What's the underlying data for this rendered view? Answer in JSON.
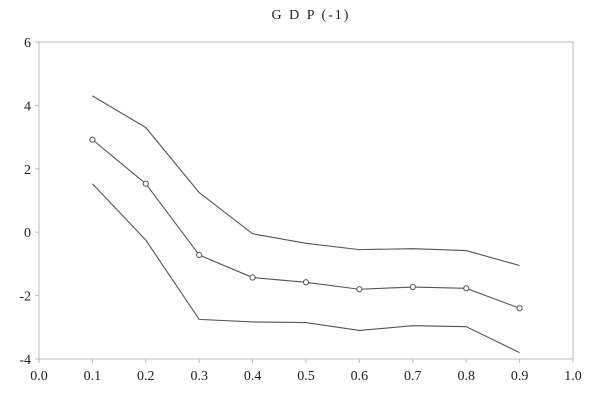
{
  "chart_data": {
    "type": "line",
    "title": "G D P (-1)",
    "xlabel": "",
    "ylabel": "",
    "xlim": [
      0.0,
      1.0
    ],
    "ylim": [
      -4,
      6
    ],
    "x_ticks": [
      "0.0",
      "0.1",
      "0.2",
      "0.3",
      "0.4",
      "0.5",
      "0.6",
      "0.7",
      "0.8",
      "0.9",
      "1.0"
    ],
    "y_ticks": [
      "6",
      "4",
      "2",
      "0",
      "-2",
      "-4"
    ],
    "x": [
      0.1,
      0.2,
      0.3,
      0.4,
      0.5,
      0.6,
      0.7,
      0.8,
      0.9
    ],
    "series": [
      {
        "values": [
          4.3,
          3.3,
          1.25,
          -0.05,
          -0.35,
          -0.55,
          -0.52,
          -0.58,
          -1.05
        ],
        "markers": false
      },
      {
        "values": [
          2.92,
          1.53,
          -0.72,
          -1.43,
          -1.58,
          -1.8,
          -1.73,
          -1.77,
          -2.4
        ],
        "markers": true
      },
      {
        "values": [
          1.53,
          -0.25,
          -2.75,
          -2.83,
          -2.85,
          -3.1,
          -2.95,
          -2.98,
          -3.8
        ],
        "markers": false
      }
    ],
    "line_color": "#555555",
    "frame_color": "#bdbdbd",
    "grid": false,
    "legend": "none"
  }
}
